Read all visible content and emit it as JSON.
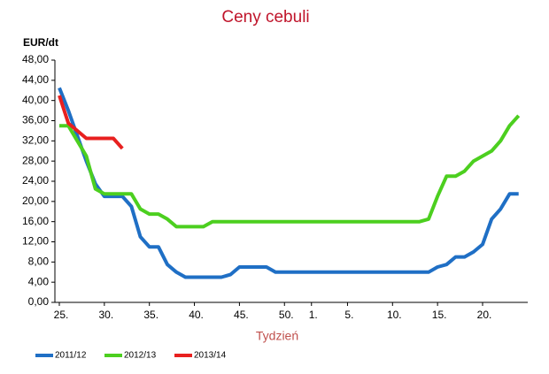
{
  "chart_data": {
    "type": "line",
    "title": "Ceny cebuli",
    "y_label": "EUR/dt",
    "x_label": "Tydzień",
    "categories": [
      "25.",
      null,
      null,
      null,
      null,
      "30.",
      null,
      null,
      null,
      null,
      "35.",
      null,
      null,
      null,
      null,
      "40.",
      null,
      null,
      null,
      null,
      "45.",
      null,
      null,
      null,
      null,
      "50.",
      null,
      null,
      "1.",
      null,
      null,
      null,
      "5.",
      null,
      null,
      null,
      null,
      "10.",
      null,
      null,
      null,
      null,
      "15.",
      null,
      null,
      null,
      null,
      "20.",
      null,
      null,
      null,
      null
    ],
    "ylim": [
      0,
      48
    ],
    "yticks": [
      {
        "value": 0,
        "label": "0,00"
      },
      {
        "value": 4,
        "label": "4,00"
      },
      {
        "value": 8,
        "label": "8,00"
      },
      {
        "value": 12,
        "label": "12,00"
      },
      {
        "value": 16,
        "label": "16,00"
      },
      {
        "value": 20,
        "label": "20,00"
      },
      {
        "value": 24,
        "label": "24,00"
      },
      {
        "value": 28,
        "label": "28,00"
      },
      {
        "value": 32,
        "label": "32,00"
      },
      {
        "value": 36,
        "label": "36,00"
      },
      {
        "value": 40,
        "label": "40,00"
      },
      {
        "value": 44,
        "label": "44,00"
      },
      {
        "value": 48,
        "label": "48,00"
      }
    ],
    "series": [
      {
        "name": "2011/12",
        "color": "#1f6fc5",
        "values": [
          42.5,
          38,
          33,
          28,
          23.5,
          21,
          21,
          21,
          19,
          13,
          11,
          11,
          7.5,
          6,
          5,
          5,
          5,
          5,
          5,
          5.5,
          7,
          7,
          7,
          7,
          6,
          6,
          6,
          6,
          6,
          6,
          6,
          6,
          6,
          6,
          6,
          6,
          6,
          6,
          6,
          6,
          6,
          6,
          7,
          7.5,
          9,
          9,
          10,
          11.5,
          16.5,
          18.5,
          21.5,
          21.5
        ]
      },
      {
        "name": "2012/13",
        "color": "#4ccf1f",
        "values": [
          35,
          35,
          32,
          29,
          22.5,
          21.5,
          21.5,
          21.5,
          21.5,
          18.5,
          17.5,
          17.5,
          16.5,
          15,
          15,
          15,
          15,
          16,
          16,
          16,
          16,
          16,
          16,
          16,
          16,
          16,
          16,
          16,
          16,
          16,
          16,
          16,
          16,
          16,
          16,
          16,
          16,
          16,
          16,
          16,
          16,
          16.5,
          21,
          25,
          25,
          26,
          28,
          29,
          30,
          32,
          35,
          37
        ]
      },
      {
        "name": "2013/14",
        "color": "#e8201f",
        "values": [
          41,
          35.5,
          34,
          32.5,
          32.5,
          32.5,
          32.5,
          30.5,
          null,
          null,
          null,
          null,
          null,
          null,
          null,
          null,
          null,
          null,
          null,
          null,
          null,
          null,
          null,
          null,
          null,
          null,
          null,
          null,
          null,
          null,
          null,
          null,
          null,
          null,
          null,
          null,
          null,
          null,
          null,
          null,
          null,
          null,
          null,
          null,
          null,
          null,
          null,
          null,
          null,
          null,
          null,
          null
        ]
      }
    ]
  }
}
